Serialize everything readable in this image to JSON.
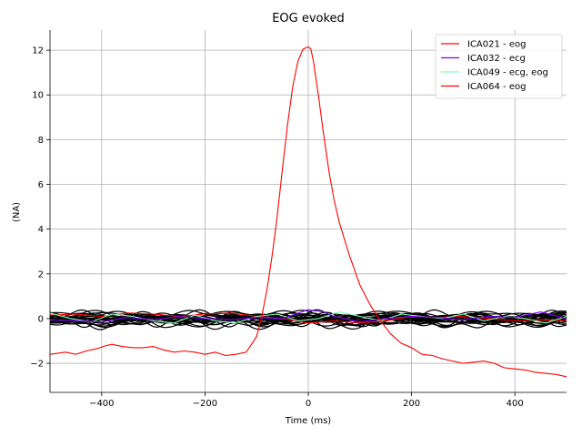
{
  "chart_data": {
    "type": "line",
    "title": "EOG evoked",
    "xlabel": "Time (ms)",
    "ylabel": "(NA)",
    "xlim": [
      -500,
      500
    ],
    "ylim": [
      -3.3,
      12.9
    ],
    "xticks": [
      -400,
      -200,
      0,
      200,
      400
    ],
    "xtick_labels": [
      "−400",
      "−200",
      "0",
      "200",
      "400"
    ],
    "yticks": [
      -2,
      0,
      2,
      4,
      6,
      8,
      10,
      12
    ],
    "ytick_labels": [
      "−2",
      "0",
      "2",
      "4",
      "6",
      "8",
      "10",
      "12"
    ],
    "grid": true,
    "legend_position": "top-right",
    "series": [
      {
        "name": "ICA021 - eog",
        "color": "#ff0000",
        "in_legend": true,
        "x": [
          -500,
          -470,
          -450,
          -430,
          -410,
          -390,
          -380,
          -360,
          -340,
          -320,
          -300,
          -280,
          -260,
          -240,
          -220,
          -200,
          -180,
          -160,
          -140,
          -120,
          -100,
          -90,
          -80,
          -70,
          -60,
          -50,
          -40,
          -30,
          -20,
          -10,
          0,
          5,
          10,
          20,
          30,
          40,
          50,
          60,
          80,
          100,
          120,
          140,
          160,
          180,
          200,
          220,
          240,
          260,
          280,
          300,
          320,
          340,
          360,
          380,
          400,
          420,
          440,
          460,
          480,
          500
        ],
        "y": [
          -1.6,
          -1.5,
          -1.6,
          -1.45,
          -1.35,
          -1.2,
          -1.15,
          -1.25,
          -1.3,
          -1.3,
          -1.25,
          -1.4,
          -1.5,
          -1.45,
          -1.5,
          -1.6,
          -1.5,
          -1.65,
          -1.6,
          -1.5,
          -0.8,
          0.1,
          1.3,
          2.8,
          4.6,
          6.7,
          8.7,
          10.4,
          11.5,
          12.05,
          12.15,
          12.05,
          11.5,
          9.9,
          8.2,
          6.6,
          5.3,
          4.3,
          2.8,
          1.5,
          0.6,
          -0.1,
          -0.7,
          -1.1,
          -1.3,
          -1.6,
          -1.65,
          -1.8,
          -1.9,
          -2.0,
          -1.95,
          -1.9,
          -2.0,
          -2.2,
          -2.25,
          -2.3,
          -2.4,
          -2.45,
          -2.5,
          -2.6
        ]
      },
      {
        "name": "ICA032 - ecg",
        "color": "#8000ff",
        "in_legend": true,
        "x": [
          -500,
          -450,
          -400,
          -350,
          -300,
          -250,
          -200,
          -150,
          -100,
          -50,
          0,
          10,
          30,
          50,
          100,
          150,
          200,
          250,
          300,
          350,
          400,
          450,
          500
        ],
        "y": [
          -0.05,
          -0.1,
          -0.15,
          0.05,
          -0.05,
          0.1,
          0.0,
          -0.05,
          0.05,
          0.0,
          0.4,
          0.35,
          0.3,
          0.1,
          -0.15,
          0.0,
          0.1,
          0.05,
          -0.05,
          0.1,
          0.05,
          0.3,
          0.0
        ]
      },
      {
        "name": "ICA049 - ecg, eog",
        "color": "#80ffb4",
        "in_legend": true,
        "x": [
          -500,
          -460,
          -420,
          -380,
          -340,
          -300,
          -260,
          -220,
          -180,
          -140,
          -100,
          -60,
          -20,
          20,
          60,
          100,
          140,
          180,
          220,
          260,
          300,
          340,
          380,
          420,
          460,
          500
        ],
        "y": [
          0.25,
          0.0,
          -0.15,
          0.2,
          0.1,
          -0.1,
          -0.2,
          0.15,
          -0.1,
          -0.2,
          0.1,
          0.2,
          -0.1,
          0.0,
          0.3,
          0.1,
          -0.1,
          0.2,
          0.1,
          0.0,
          0.2,
          -0.1,
          0.1,
          0.0,
          -0.2,
          0.1
        ]
      },
      {
        "name": "ICA064 - eog",
        "color": "#ff0000",
        "in_legend": true,
        "x": [
          -500,
          -450,
          -400,
          -350,
          -300,
          -250,
          -200,
          -150,
          -100,
          -50,
          0,
          50,
          100,
          150,
          200,
          250,
          300,
          350,
          400,
          450,
          500
        ],
        "y": [
          0.15,
          0.2,
          0.1,
          0.25,
          0.2,
          0.1,
          0.2,
          0.25,
          0.1,
          0.0,
          -0.2,
          -0.1,
          -0.2,
          -0.1,
          0.1,
          0.05,
          0.1,
          0.0,
          -0.1,
          -0.05,
          -0.1
        ]
      }
    ]
  }
}
